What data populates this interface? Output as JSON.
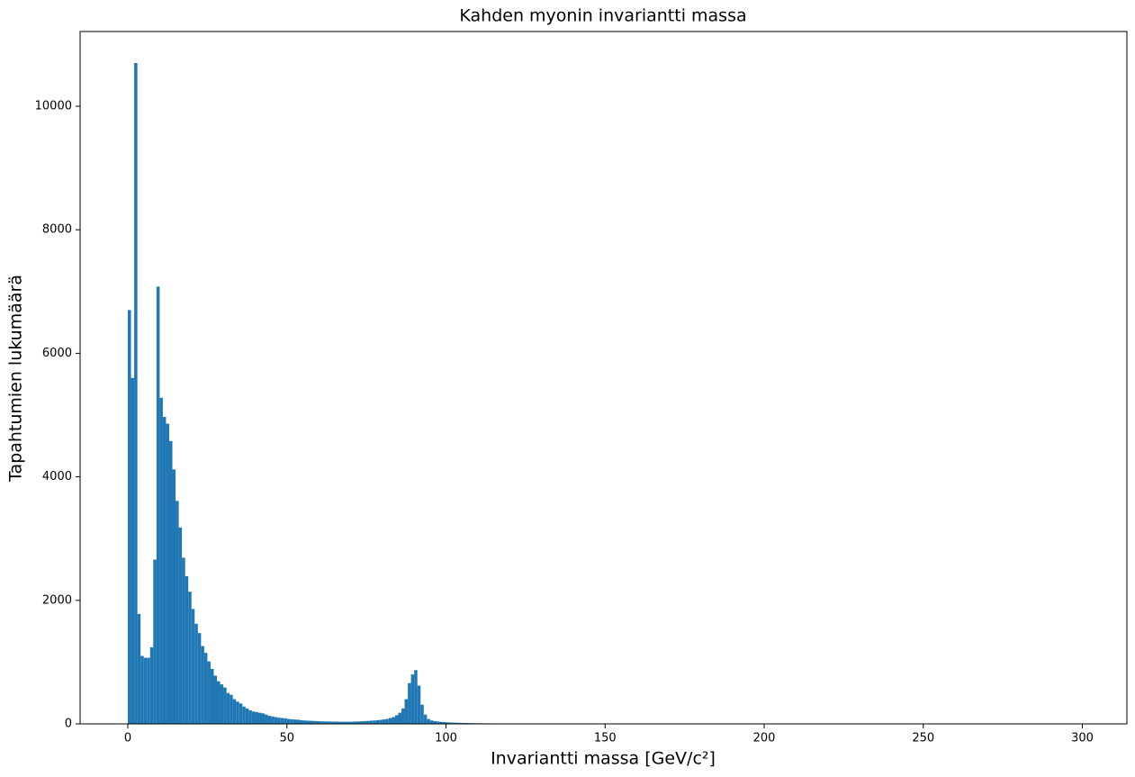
{
  "chart_data": {
    "type": "histogram",
    "title": "Kahden myonin invariantti massa",
    "x_label": "Invariantti massa [GeV/c²]",
    "y_label": "Tapahtumien lukumäärä",
    "color": "#1f77b4",
    "bins": [
      0,
      1,
      2,
      3,
      4,
      5,
      6,
      7,
      8,
      9,
      10,
      11,
      12,
      13,
      14,
      15,
      16,
      17,
      18,
      19,
      20,
      21,
      22,
      23,
      24,
      25,
      26,
      27,
      28,
      29,
      30,
      31,
      32,
      33,
      34,
      35,
      36,
      37,
      38,
      39,
      40,
      41,
      42,
      43,
      44,
      45,
      46,
      47,
      48,
      49,
      50,
      51,
      52,
      53,
      54,
      55,
      56,
      57,
      58,
      59,
      60,
      61,
      62,
      63,
      64,
      65,
      66,
      67,
      68,
      69,
      70,
      71,
      72,
      73,
      74,
      75,
      76,
      77,
      78,
      79,
      80,
      81,
      82,
      83,
      84,
      85,
      86,
      87,
      88,
      89,
      90,
      91,
      92,
      93,
      94,
      95,
      96,
      97,
      98,
      99,
      100,
      101,
      102,
      103,
      104,
      105,
      106,
      107,
      108,
      109,
      110,
      111,
      112,
      113,
      114,
      115,
      116,
      117,
      118,
      119,
      120,
      121,
      122,
      123,
      124,
      125,
      126,
      127,
      128,
      129,
      130,
      131,
      132,
      133,
      134,
      135,
      136,
      137,
      138,
      139,
      140,
      300
    ],
    "counts": [
      6700,
      5600,
      10700,
      1780,
      1100,
      1070,
      1070,
      1240,
      2660,
      7080,
      5280,
      4970,
      4860,
      4580,
      4120,
      3610,
      3180,
      2690,
      2390,
      2140,
      1860,
      1620,
      1470,
      1260,
      1150,
      1010,
      890,
      780,
      690,
      640,
      590,
      500,
      470,
      400,
      360,
      330,
      280,
      250,
      220,
      200,
      190,
      180,
      170,
      150,
      130,
      120,
      110,
      100,
      95,
      90,
      80,
      75,
      70,
      68,
      60,
      55,
      52,
      50,
      48,
      45,
      42,
      40,
      40,
      38,
      37,
      36,
      36,
      35,
      35,
      35,
      36,
      38,
      40,
      42,
      45,
      48,
      52,
      55,
      60,
      65,
      72,
      80,
      95,
      110,
      140,
      180,
      250,
      400,
      660,
      800,
      870,
      620,
      310,
      150,
      80,
      55,
      45,
      38,
      32,
      28,
      25,
      22,
      20,
      18,
      17,
      15,
      14,
      13,
      12,
      11,
      10,
      10,
      9,
      9,
      8,
      8,
      7,
      7,
      6,
      6,
      6,
      5,
      5,
      5,
      4,
      4,
      4,
      4,
      3,
      3,
      3,
      3,
      3,
      2,
      2,
      2,
      2,
      2,
      2,
      2,
      0
    ],
    "xlim": [
      -15,
      314
    ],
    "ylim": [
      0,
      11210
    ],
    "xticks": [
      0,
      50,
      100,
      150,
      200,
      250,
      300
    ],
    "yticks": [
      0,
      2000,
      4000,
      6000,
      8000,
      10000
    ]
  }
}
